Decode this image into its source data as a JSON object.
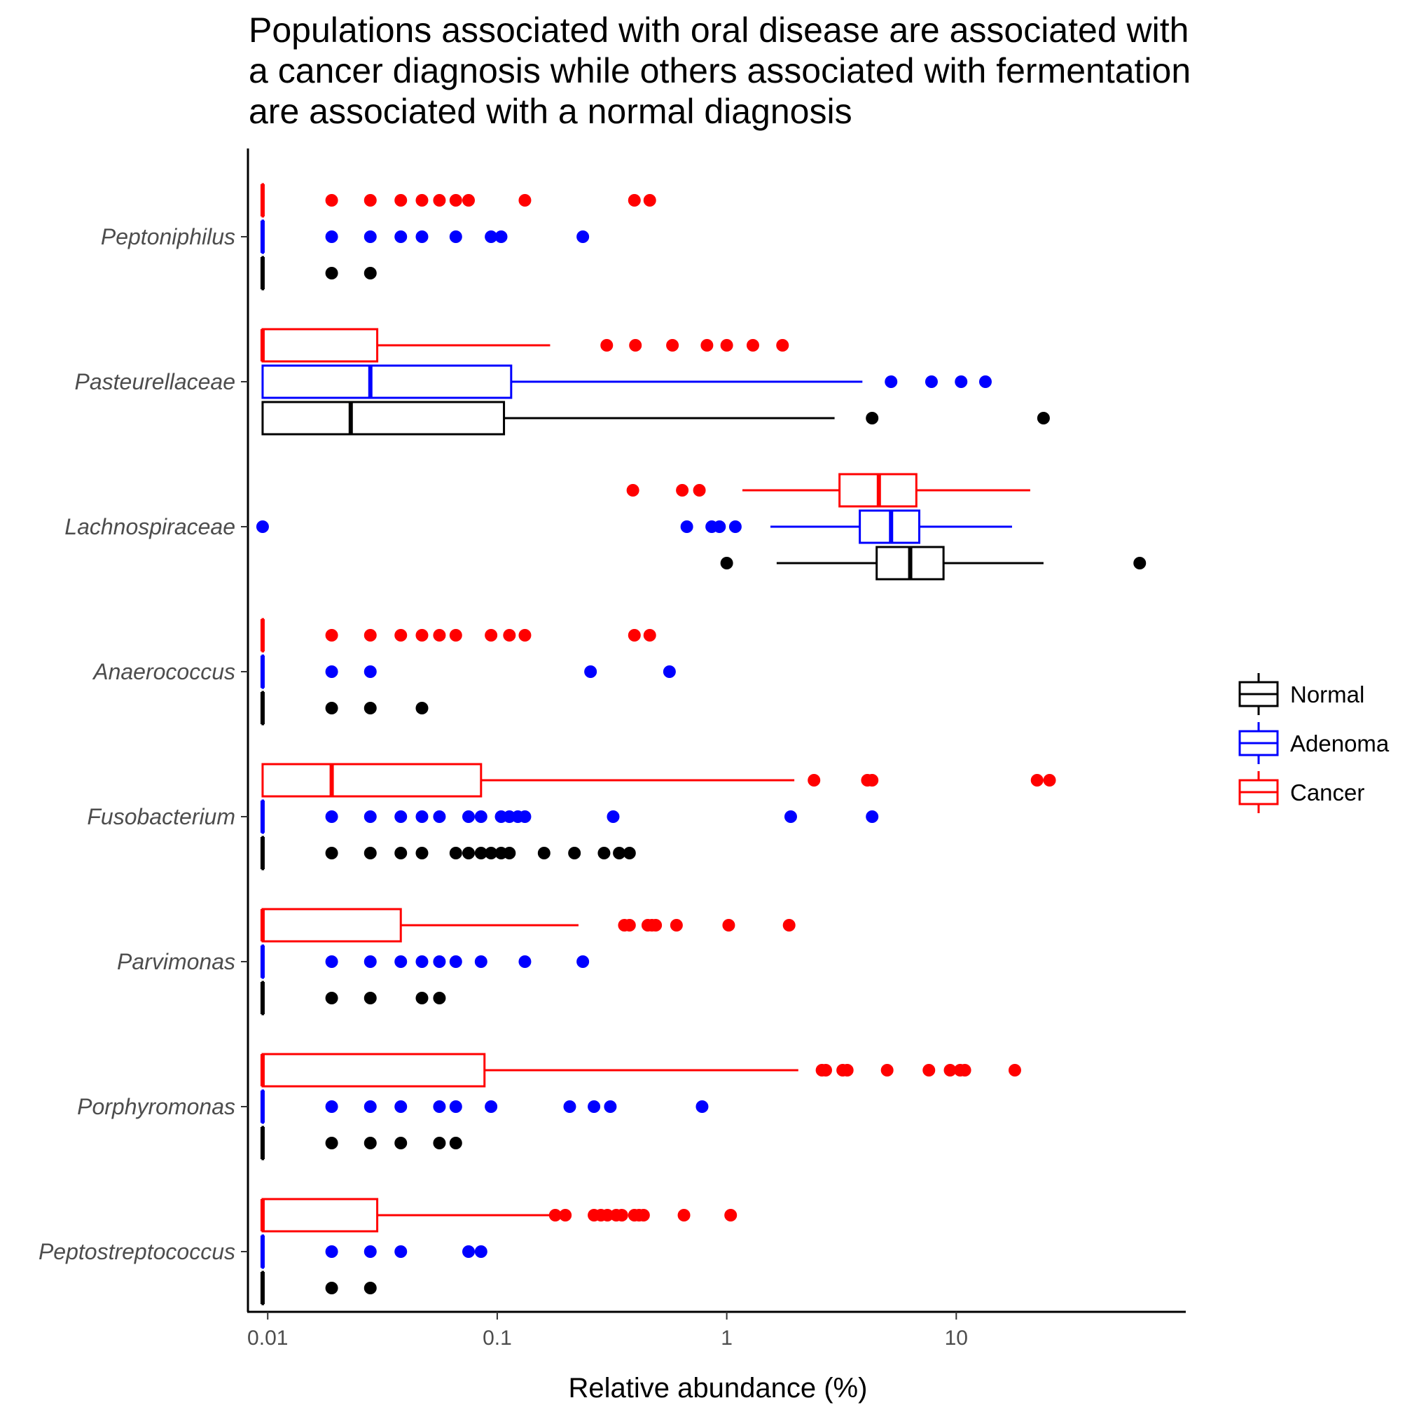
{
  "chart_data": {
    "type": "boxplot",
    "title_lines": [
      "Populations associated with oral disease are associated with",
      "a cancer diagnosis while others associated with fermentation",
      "are associated with a normal diagnosis"
    ],
    "xlabel": "Relative abundance (%)",
    "ylabel": "",
    "x_scale": "log10",
    "xlim": [
      0.0082,
      100
    ],
    "x_ticks": [
      {
        "value": 0.01,
        "label": "0.01"
      },
      {
        "value": 0.1,
        "label": "0.1"
      },
      {
        "value": 1,
        "label": "1"
      },
      {
        "value": 10,
        "label": "10"
      }
    ],
    "grid": false,
    "legend_position": "right",
    "legend": [
      {
        "name": "Normal",
        "color": "#000000"
      },
      {
        "name": "Adenoma",
        "color": "#0000ff"
      },
      {
        "name": "Cancer",
        "color": "#ff0000"
      }
    ],
    "categories": [
      {
        "label": "Peptoniphilus",
        "groups": {
          "Cancer": {
            "box": [
              0.0095,
              0.0095,
              0.0095
            ],
            "whiskers": [
              0.0095,
              0.0095
            ],
            "outliers": [
              0.019,
              0.028,
              0.038,
              0.047,
              0.056,
              0.066,
              0.075,
              0.132,
              0.396,
              0.462
            ]
          },
          "Adenoma": {
            "box": [
              0.0095,
              0.0095,
              0.0095
            ],
            "whiskers": [
              0.0095,
              0.0095
            ],
            "outliers": [
              0.019,
              0.028,
              0.038,
              0.047,
              0.066,
              0.094,
              0.104,
              0.236
            ]
          },
          "Normal": {
            "box": [
              0.0095,
              0.0095,
              0.0095
            ],
            "whiskers": [
              0.0095,
              0.0095
            ],
            "outliers": [
              0.019,
              0.028
            ]
          }
        }
      },
      {
        "label": "Pasteurellaceae",
        "groups": {
          "Cancer": {
            "box": [
              0.0095,
              0.0095,
              0.03
            ],
            "whiskers": [
              0.0095,
              0.17
            ],
            "outliers": [
              0.3,
              0.4,
              0.58,
              0.82,
              1.0,
              1.3,
              1.75
            ]
          },
          "Adenoma": {
            "box": [
              0.0095,
              0.028,
              0.115
            ],
            "whiskers": [
              0.0095,
              3.9
            ],
            "outliers": [
              5.2,
              7.8,
              10.5,
              13.4
            ]
          },
          "Normal": {
            "box": [
              0.0095,
              0.023,
              0.107
            ],
            "whiskers": [
              0.0095,
              2.95
            ],
            "outliers": [
              4.3,
              24
            ]
          }
        }
      },
      {
        "label": "Lachnospiraceae",
        "groups": {
          "Cancer": {
            "box": [
              3.1,
              4.6,
              6.7
            ],
            "whiskers": [
              1.17,
              21
            ],
            "outliers": [
              0.39,
              0.64,
              0.76
            ]
          },
          "Adenoma": {
            "box": [
              3.8,
              5.2,
              6.9
            ],
            "whiskers": [
              1.55,
              17.5
            ],
            "outliers": [
              0.0095,
              0.67,
              0.86,
              0.93,
              1.09
            ]
          },
          "Normal": {
            "box": [
              4.5,
              6.3,
              8.8
            ],
            "whiskers": [
              1.65,
              24
            ],
            "outliers": [
              1.0,
              63
            ]
          }
        }
      },
      {
        "label": "Anaerococcus",
        "groups": {
          "Cancer": {
            "box": [
              0.0095,
              0.0095,
              0.0095
            ],
            "whiskers": [
              0.0095,
              0.0095
            ],
            "outliers": [
              0.019,
              0.028,
              0.038,
              0.047,
              0.056,
              0.066,
              0.094,
              0.113,
              0.132,
              0.396,
              0.462
            ]
          },
          "Adenoma": {
            "box": [
              0.0095,
              0.0095,
              0.0095
            ],
            "whiskers": [
              0.0095,
              0.0095
            ],
            "outliers": [
              0.019,
              0.028,
              0.255,
              0.563
            ]
          },
          "Normal": {
            "box": [
              0.0095,
              0.0095,
              0.0095
            ],
            "whiskers": [
              0.0095,
              0.0095
            ],
            "outliers": [
              0.019,
              0.028,
              0.047
            ]
          }
        }
      },
      {
        "label": "Fusobacterium",
        "groups": {
          "Cancer": {
            "box": [
              0.0095,
              0.019,
              0.085
            ],
            "whiskers": [
              0.0095,
              1.97
            ],
            "outliers": [
              2.4,
              4.1,
              4.3,
              22.5,
              25.5
            ]
          },
          "Adenoma": {
            "box": [
              0.0095,
              0.0095,
              0.0095
            ],
            "whiskers": [
              0.0095,
              0.0095
            ],
            "outliers": [
              0.019,
              0.028,
              0.038,
              0.047,
              0.056,
              0.075,
              0.085,
              0.104,
              0.113,
              0.123,
              0.132,
              0.32,
              1.9,
              4.3
            ]
          },
          "Normal": {
            "box": [
              0.0095,
              0.0095,
              0.0095
            ],
            "whiskers": [
              0.0095,
              0.0095
            ],
            "outliers": [
              0.019,
              0.028,
              0.038,
              0.047,
              0.066,
              0.075,
              0.085,
              0.094,
              0.104,
              0.113,
              0.16,
              0.217,
              0.292,
              0.34,
              0.377
            ]
          }
        }
      },
      {
        "label": "Parvimonas",
        "groups": {
          "Cancer": {
            "box": [
              0.0095,
              0.0095,
              0.038
            ],
            "whiskers": [
              0.0095,
              0.226
            ],
            "outliers": [
              0.358,
              0.377,
              0.453,
              0.472,
              0.49,
              0.604,
              1.02,
              1.87
            ]
          },
          "Adenoma": {
            "box": [
              0.0095,
              0.0095,
              0.0095
            ],
            "whiskers": [
              0.0095,
              0.0095
            ],
            "outliers": [
              0.019,
              0.028,
              0.038,
              0.047,
              0.056,
              0.066,
              0.085,
              0.132,
              0.236
            ]
          },
          "Normal": {
            "box": [
              0.0095,
              0.0095,
              0.0095
            ],
            "whiskers": [
              0.0095,
              0.0095
            ],
            "outliers": [
              0.019,
              0.028,
              0.047,
              0.056
            ]
          }
        }
      },
      {
        "label": "Porphyromonas",
        "groups": {
          "Cancer": {
            "box": [
              0.0095,
              0.0095,
              0.088
            ],
            "whiskers": [
              0.0095,
              2.05
            ],
            "outliers": [
              2.6,
              2.7,
              3.2,
              3.35,
              5.0,
              7.6,
              9.4,
              10.4,
              10.9,
              18
            ]
          },
          "Adenoma": {
            "box": [
              0.0095,
              0.0095,
              0.0095
            ],
            "whiskers": [
              0.0095,
              0.0095
            ],
            "outliers": [
              0.019,
              0.028,
              0.038,
              0.056,
              0.066,
              0.094,
              0.207,
              0.264,
              0.311,
              0.781
            ]
          },
          "Normal": {
            "box": [
              0.0095,
              0.0095,
              0.0095
            ],
            "whiskers": [
              0.0095,
              0.0095
            ],
            "outliers": [
              0.019,
              0.028,
              0.038,
              0.056,
              0.066
            ]
          }
        }
      },
      {
        "label": "Peptostreptococcus",
        "groups": {
          "Cancer": {
            "box": [
              0.0095,
              0.0095,
              0.03
            ],
            "whiskers": [
              0.0095,
              0.17
            ],
            "outliers": [
              0.179,
              0.198,
              0.264,
              0.283,
              0.302,
              0.33,
              0.349,
              0.396,
              0.415,
              0.434,
              0.651,
              1.04
            ]
          },
          "Adenoma": {
            "box": [
              0.0095,
              0.0095,
              0.0095
            ],
            "whiskers": [
              0.0095,
              0.0095
            ],
            "outliers": [
              0.019,
              0.028,
              0.038,
              0.075,
              0.085
            ]
          },
          "Normal": {
            "box": [
              0.0095,
              0.0095,
              0.0095
            ],
            "whiskers": [
              0.0095,
              0.0095
            ],
            "outliers": [
              0.019,
              0.028
            ]
          }
        }
      }
    ]
  }
}
